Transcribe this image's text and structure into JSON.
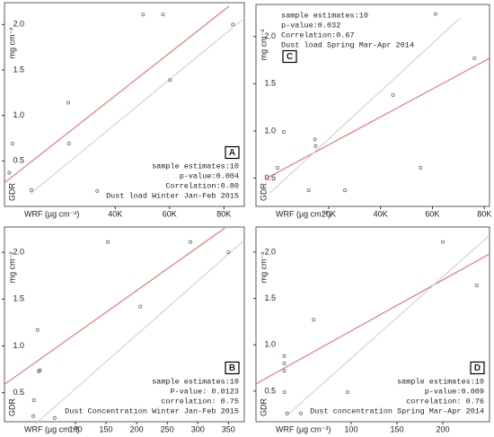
{
  "chart_data": [
    {
      "type": "scatter",
      "panel_label": "A",
      "annotation_corner": "bottom-right",
      "annotations": [
        "sample estimates:10",
        "p-value:0.004",
        "Correlation:0.80",
        "Dust load Winter Jan-Feb 2015"
      ],
      "y_label": "mg cm⁻²",
      "y_label_bottom": "GDR",
      "x_label": "WRF (µg cm⁻²)",
      "x": [
        1100,
        2200,
        9200,
        22800,
        23000,
        33400,
        50300,
        57600,
        60200,
        83300
      ],
      "y": [
        0.37,
        0.69,
        0.18,
        1.14,
        0.69,
        0.17,
        2.11,
        2.11,
        1.39,
        2.0
      ],
      "point_color": "#555555",
      "lines": [
        {
          "x": [
            -700,
            81800
          ],
          "y": [
            0.26,
            2.2
          ],
          "color": "#e8625c"
        },
        {
          "x": [
            8500,
            87500
          ],
          "y": [
            0.13,
            2.07
          ],
          "color": "#cccccc"
        }
      ],
      "xlim": [
        -700,
        87500
      ],
      "ylim": [
        0,
        2.24
      ],
      "xticks": [
        {
          "value": 40000,
          "label": "40K"
        },
        {
          "value": 60000,
          "label": "60K"
        },
        {
          "value": 80000,
          "label": "80K"
        }
      ],
      "yticks": [
        0.5,
        {
          "value": 1,
          "label": "1.0"
        },
        1.5,
        {
          "value": 2,
          "label": "2.0"
        }
      ]
    },
    {
      "type": "scatter",
      "panel_label": "C",
      "annotation_corner": "top-left",
      "annotations": [
        "sample estimates:10",
        "p-value:0.032",
        "Correlation:0.67",
        "Dust load Spring Mar-Apr 2014"
      ],
      "y_label": "mg cm⁻²",
      "y_label_bottom": "GDR",
      "x_label": "WRF (µg cm⁻²)",
      "x": [
        300,
        2700,
        12300,
        14700,
        15000,
        26300,
        44800,
        55400,
        61200,
        76200
      ],
      "y": [
        0.61,
        0.99,
        0.37,
        0.91,
        0.84,
        0.37,
        1.38,
        0.61,
        2.24,
        1.77
      ],
      "point_color": "#555555",
      "lines": [
        {
          "x": [
            -4500,
            82000
          ],
          "y": [
            0.49,
            1.77
          ],
          "color": "#e8625c"
        },
        {
          "x": [
            -2700,
            70800
          ],
          "y": [
            0.34,
            2.2
          ],
          "color": "#cccccc"
        }
      ],
      "xlim": [
        -8000,
        82000
      ],
      "ylim": [
        0.2,
        2.34
      ],
      "xticks": [
        {
          "value": 20000,
          "label": "20K"
        },
        {
          "value": 40000,
          "label": "40K"
        },
        {
          "value": 60000,
          "label": "60K"
        },
        {
          "value": 80000,
          "label": "80K"
        }
      ],
      "yticks": [
        0.5,
        {
          "value": 1,
          "label": "1.0"
        },
        1.5,
        {
          "value": 2,
          "label": "2.0"
        }
      ]
    },
    {
      "type": "scatter",
      "panel_label": "B",
      "annotation_corner": "bottom-right",
      "annotations": [
        "sample estimates:10",
        "P-value: 0.0123",
        "correlation: 0.75",
        "Dust Concentration Winter Jan-Feb 2015"
      ],
      "y_label": "mg cm⁻²",
      "y_label_bottom": "GDR",
      "x_label": "WRF (µg cm⁻³)",
      "x": [
        31,
        32,
        38,
        40,
        42,
        66,
        153,
        206,
        288,
        350
      ],
      "y": [
        0.25,
        0.42,
        1.17,
        0.73,
        0.74,
        0.23,
        2.11,
        1.42,
        2.11,
        2.0
      ],
      "point_color": "#555555",
      "lines": [
        {
          "x": [
            -16,
            344
          ],
          "y": [
            0.59,
            2.26
          ],
          "color": "#e8625c"
        },
        {
          "x": [
            35,
            376
          ],
          "y": [
            0.17,
            2.13
          ],
          "color": "#cccccc"
        }
      ],
      "xlim": [
        -16,
        376
      ],
      "ylim": [
        0.19,
        2.27
      ],
      "xticks": [
        100,
        150,
        200,
        250,
        300,
        350
      ],
      "yticks": [
        0.5,
        {
          "value": 1,
          "label": "1.0"
        },
        1.5,
        {
          "value": 2,
          "label": "2.0"
        }
      ]
    },
    {
      "type": "scatter",
      "panel_label": "D",
      "annotation_corner": "bottom-right",
      "annotations": [
        "sample estimates:10",
        "p-value:0.009",
        "correlation: 0.76",
        "Dust concentration Spring Mar-Apr 2014"
      ],
      "y_label": "mg cm⁻²",
      "y_label_bottom": "GDR",
      "x_label": "WRF (µg cm⁻³)",
      "x": [
        27,
        27,
        27,
        27,
        30,
        45,
        59,
        96,
        200,
        237
      ],
      "y": [
        0.88,
        0.8,
        0.72,
        0.49,
        0.26,
        0.26,
        1.27,
        0.49,
        2.11,
        1.64
      ],
      "point_color": "#555555",
      "lines": [
        {
          "x": [
            -4,
            251
          ],
          "y": [
            0.58,
            1.98
          ],
          "color": "#e8625c"
        },
        {
          "x": [
            30,
            251
          ],
          "y": [
            0.24,
            2.18
          ],
          "color": "#cccccc"
        }
      ],
      "xlim": [
        -4,
        251
      ],
      "ylim": [
        0.17,
        2.27
      ],
      "xticks": [
        100,
        150,
        200
      ],
      "yticks": [
        0.5,
        {
          "value": 1,
          "label": "1.0"
        },
        1.5,
        {
          "value": 2,
          "label": "2.0"
        }
      ]
    }
  ]
}
